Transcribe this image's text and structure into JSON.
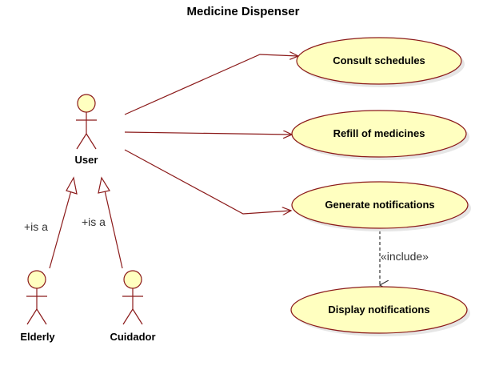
{
  "diagram": {
    "title": "Medicine Dispenser",
    "colors": {
      "stroke": "#8b1a1a",
      "fill": "#ffffc0",
      "shadow": "#e6e6e6",
      "dashed": "#333333"
    },
    "actors": {
      "user": "User",
      "elderly": "Elderly",
      "cuidador": "Cuidador"
    },
    "use_cases": {
      "consult": "Consult schedules",
      "refill": "Refill of medicines",
      "generate": "Generate notifications",
      "display": "Display notifications"
    },
    "relations": {
      "elderly_is_a": "+is a",
      "cuidador_is_a": "+is a",
      "include": "«include»"
    }
  }
}
